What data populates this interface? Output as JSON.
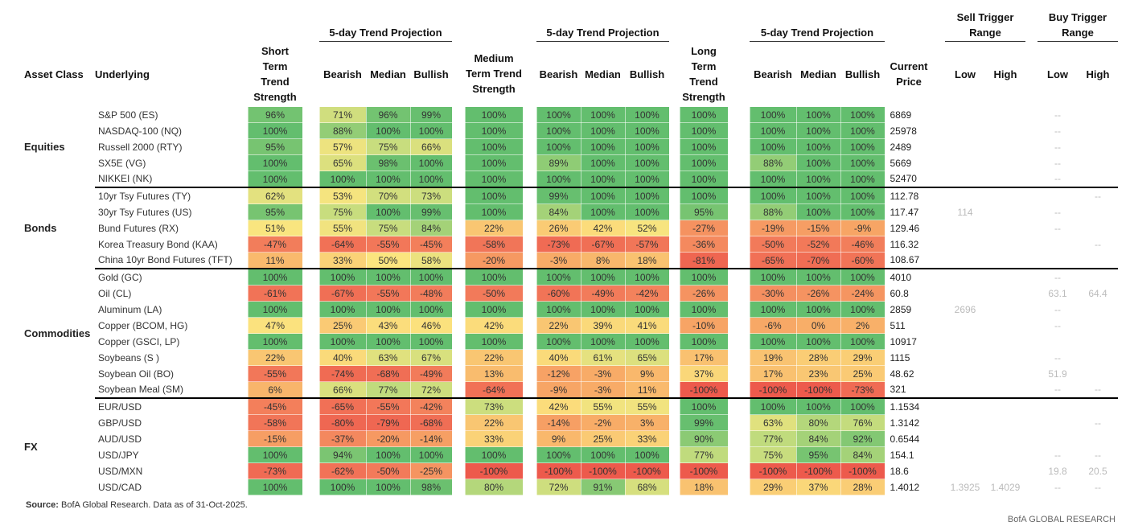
{
  "header": {
    "group_headers": [
      "5-day Trend Projection",
      "5-day Trend Projection",
      "5-day Trend Projection",
      "Sell Trigger Range",
      "Buy Trigger Range"
    ],
    "columns": [
      "Asset Class",
      "Underlying",
      "Short Term Trend Strength",
      "Bearish",
      "Median",
      "Bullish",
      "Medium Term Trend Strength",
      "Bearish",
      "Median",
      "Bullish",
      "Long Term Trend Strength",
      "Bearish",
      "Median",
      "Bullish",
      "Current Price",
      "Low",
      "High",
      "Low",
      "High"
    ]
  },
  "groups": [
    {
      "asset_class": "Equities",
      "rows": [
        [
          "S&P 500 (ES)",
          "96%",
          "71%",
          "96%",
          "99%",
          "100%",
          "100%",
          "100%",
          "100%",
          "100%",
          "100%",
          "100%",
          "100%",
          "6869",
          null,
          null,
          "--",
          null
        ],
        [
          "NASDAQ-100 (NQ)",
          "100%",
          "88%",
          "100%",
          "100%",
          "100%",
          "100%",
          "100%",
          "100%",
          "100%",
          "100%",
          "100%",
          "100%",
          "25978",
          null,
          null,
          "--",
          null
        ],
        [
          "Russell 2000 (RTY)",
          "95%",
          "57%",
          "75%",
          "66%",
          "100%",
          "100%",
          "100%",
          "100%",
          "100%",
          "100%",
          "100%",
          "100%",
          "2489",
          null,
          null,
          "--",
          null
        ],
        [
          "SX5E (VG)",
          "100%",
          "65%",
          "98%",
          "100%",
          "100%",
          "89%",
          "100%",
          "100%",
          "100%",
          "88%",
          "100%",
          "100%",
          "5669",
          null,
          null,
          "--",
          null
        ],
        [
          "NIKKEI (NK)",
          "100%",
          "100%",
          "100%",
          "100%",
          "100%",
          "100%",
          "100%",
          "100%",
          "100%",
          "100%",
          "100%",
          "100%",
          "52470",
          null,
          null,
          "--",
          null
        ]
      ]
    },
    {
      "asset_class": "Bonds",
      "rows": [
        [
          "10yr Tsy Futures (TY)",
          "62%",
          "53%",
          "70%",
          "73%",
          "100%",
          "99%",
          "100%",
          "100%",
          "100%",
          "100%",
          "100%",
          "100%",
          "112.78",
          null,
          null,
          null,
          "--"
        ],
        [
          "30yr Tsy Futures (US)",
          "95%",
          "75%",
          "100%",
          "99%",
          "100%",
          "84%",
          "100%",
          "100%",
          "95%",
          "88%",
          "100%",
          "100%",
          "117.47",
          "114",
          null,
          "--",
          null
        ],
        [
          "Bund Futures (RX)",
          "51%",
          "55%",
          "75%",
          "84%",
          "22%",
          "26%",
          "42%",
          "52%",
          "-27%",
          "-19%",
          "-15%",
          "-9%",
          "129.46",
          null,
          null,
          "--",
          null
        ],
        [
          "Korea Treasury Bond (KAA)",
          "-47%",
          "-64%",
          "-55%",
          "-45%",
          "-58%",
          "-73%",
          "-67%",
          "-57%",
          "-36%",
          "-50%",
          "-52%",
          "-46%",
          "116.32",
          null,
          null,
          null,
          "--"
        ],
        [
          "China 10yr Bond Futures (TFT)",
          "11%",
          "33%",
          "50%",
          "58%",
          "-20%",
          "-3%",
          "8%",
          "18%",
          "-81%",
          "-65%",
          "-70%",
          "-60%",
          "108.67",
          null,
          null,
          null,
          null
        ]
      ]
    },
    {
      "asset_class": "Commodities",
      "rows": [
        [
          "Gold (GC)",
          "100%",
          "100%",
          "100%",
          "100%",
          "100%",
          "100%",
          "100%",
          "100%",
          "100%",
          "100%",
          "100%",
          "100%",
          "4010",
          null,
          null,
          "--",
          null
        ],
        [
          "Oil (CL)",
          "-61%",
          "-67%",
          "-55%",
          "-48%",
          "-50%",
          "-60%",
          "-49%",
          "-42%",
          "-26%",
          "-30%",
          "-26%",
          "-24%",
          "60.8",
          null,
          null,
          "63.1",
          "64.4"
        ],
        [
          "Aluminum (LA)",
          "100%",
          "100%",
          "100%",
          "100%",
          "100%",
          "100%",
          "100%",
          "100%",
          "100%",
          "100%",
          "100%",
          "100%",
          "2859",
          "2696",
          null,
          "--",
          null
        ],
        [
          "Copper (BCOM, HG)",
          "47%",
          "25%",
          "43%",
          "46%",
          "42%",
          "22%",
          "39%",
          "41%",
          "-10%",
          "-6%",
          "0%",
          "2%",
          "511",
          null,
          null,
          "--",
          null
        ],
        [
          "Copper (GSCI, LP)",
          "100%",
          "100%",
          "100%",
          "100%",
          "100%",
          "100%",
          "100%",
          "100%",
          "100%",
          "100%",
          "100%",
          "100%",
          "10917",
          null,
          null,
          null,
          null
        ],
        [
          "Soybeans (S )",
          "22%",
          "40%",
          "63%",
          "67%",
          "22%",
          "40%",
          "61%",
          "65%",
          "17%",
          "19%",
          "28%",
          "29%",
          "1115",
          null,
          null,
          "--",
          null
        ],
        [
          "Soybean Oil (BO)",
          "-55%",
          "-74%",
          "-68%",
          "-49%",
          "13%",
          "-12%",
          "-3%",
          "9%",
          "37%",
          "17%",
          "23%",
          "25%",
          "48.62",
          null,
          null,
          "51.9",
          null
        ],
        [
          "Soybean Meal (SM)",
          "6%",
          "66%",
          "77%",
          "72%",
          "-64%",
          "-9%",
          "-3%",
          "11%",
          "-100%",
          "-100%",
          "-100%",
          "-73%",
          "321",
          null,
          null,
          "--",
          "--"
        ]
      ]
    },
    {
      "asset_class": "FX",
      "rows": [
        [
          "EUR/USD",
          "-45%",
          "-65%",
          "-55%",
          "-42%",
          "73%",
          "42%",
          "55%",
          "55%",
          "100%",
          "100%",
          "100%",
          "100%",
          "1.1534",
          null,
          null,
          null,
          null
        ],
        [
          "GBP/USD",
          "-58%",
          "-80%",
          "-79%",
          "-68%",
          "22%",
          "-14%",
          "-2%",
          "3%",
          "99%",
          "63%",
          "80%",
          "76%",
          "1.3142",
          null,
          null,
          null,
          "--"
        ],
        [
          "AUD/USD",
          "-15%",
          "-37%",
          "-20%",
          "-14%",
          "33%",
          "9%",
          "25%",
          "33%",
          "90%",
          "77%",
          "84%",
          "92%",
          "0.6544",
          null,
          null,
          null,
          null
        ],
        [
          "USD/JPY",
          "100%",
          "94%",
          "100%",
          "100%",
          "100%",
          "100%",
          "100%",
          "100%",
          "77%",
          "75%",
          "95%",
          "84%",
          "154.1",
          null,
          null,
          "--",
          "--"
        ],
        [
          "USD/MXN",
          "-73%",
          "-62%",
          "-50%",
          "-25%",
          "-100%",
          "-100%",
          "-100%",
          "-100%",
          "-100%",
          "-100%",
          "-100%",
          "-100%",
          "18.6",
          null,
          null,
          "19.8",
          "20.5"
        ],
        [
          "USD/CAD",
          "100%",
          "100%",
          "100%",
          "98%",
          "80%",
          "72%",
          "91%",
          "68%",
          "18%",
          "29%",
          "37%",
          "28%",
          "1.4012",
          "1.3925",
          "1.4029",
          "--",
          "--"
        ]
      ]
    }
  ],
  "footer": {
    "source_label": "Source:",
    "source_text": "BofA Global Research.  Data as of 31-Oct-2025.",
    "brand": "BofA GLOBAL RESEARCH"
  }
}
